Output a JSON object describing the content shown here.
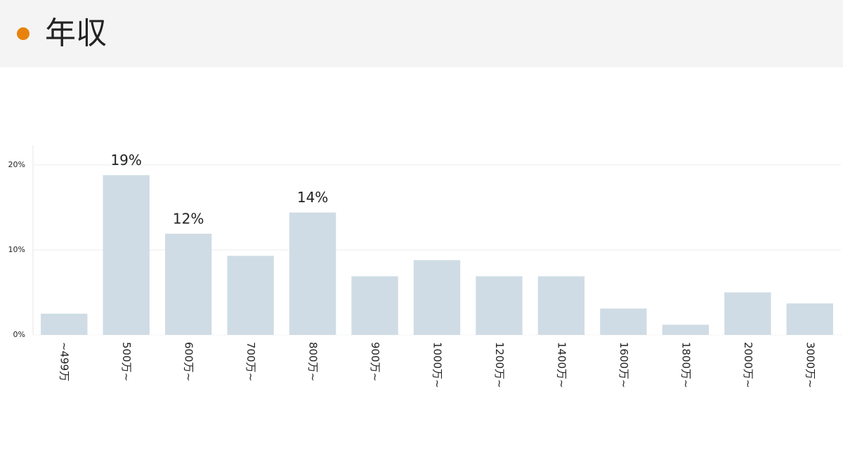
{
  "header": {
    "title": "年収"
  },
  "chart_data": {
    "type": "bar",
    "categories": [
      "~499万",
      "500万~",
      "600万~",
      "700万~",
      "800万~",
      "900万~",
      "1000万~",
      "1200万~",
      "1400万~",
      "1600万~",
      "1800万~",
      "2000万~",
      "3000万~"
    ],
    "values": [
      2.5,
      18.8,
      11.9,
      9.3,
      14.4,
      6.9,
      8.8,
      6.9,
      6.9,
      3.1,
      1.2,
      5.0,
      3.7
    ],
    "value_labels": [
      null,
      "19%",
      "12%",
      null,
      "14%",
      null,
      null,
      null,
      null,
      null,
      null,
      null,
      null
    ],
    "color": "#cfdce5",
    "ylim": [
      0,
      22.3
    ],
    "yticks": [
      {
        "value": 0,
        "label": "0%"
      },
      {
        "value": 10,
        "label": "10%"
      },
      {
        "value": 20,
        "label": "20%"
      }
    ],
    "grid": true
  }
}
